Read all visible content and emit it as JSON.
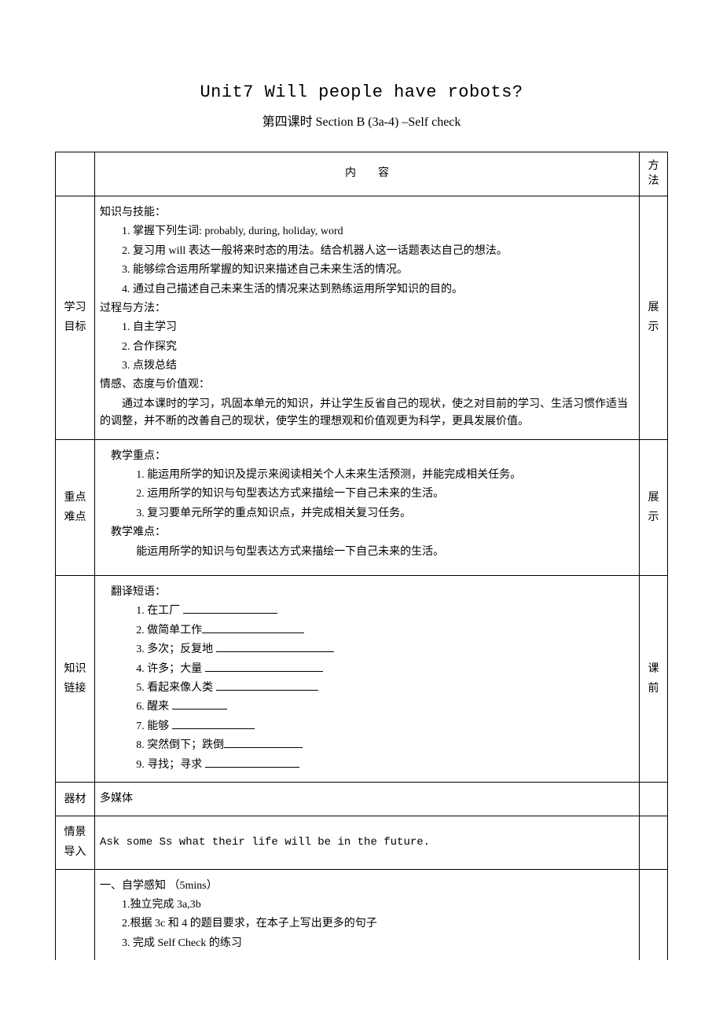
{
  "titles": {
    "unit": "Unit7 Will people have robots?",
    "period": "第四课时 Section B (3a-4)  –Self check"
  },
  "header": {
    "content": "内容",
    "method": "方法"
  },
  "rows": {
    "goal": {
      "label1": "学习",
      "label2": "目标",
      "r_method": "展示",
      "k_skill": "知识与技能：",
      "k_items": {
        "i1": "1. 掌握下列生词: probably, during, holiday, word",
        "i2": "2. 复习用 will 表达一般将来时态的用法。结合机器人这一话题表达自己的想法。",
        "i3": "3. 能够综合运用所掌握的知识来描述自己未来生活的情况。",
        "i4": "4. 通过自己描述自己未来生活的情况来达到熟练运用所学知识的目的。"
      },
      "proc": "过程与方法：",
      "p_items": {
        "i1": "1.  自主学习",
        "i2": "2.  合作探究",
        "i3": "3.  点拨总结"
      },
      "attitude": "情感、态度与价值观：",
      "attitude_text1": "通过本课时的学习，巩固本单元的知识，并让学生反省自己的现状，使之对目前的学习、生活习惯作适当的调整，并不断的改善自己的现状，使学生的理想观和价值观更为科学，更具发展价值。"
    },
    "focus": {
      "label1": "重点",
      "label2": "难点",
      "r_method": "展示",
      "teach_focus": "教学重点：",
      "f_items": {
        "i1": "1.   能运用所学的知识及提示来阅读相关个人未来生活预测，并能完成相关任务。",
        "i2": "2. 运用所学的知识与句型表达方式来描绘一下自己未来的生活。",
        "i3": "3. 复习要单元所学的重点知识点，并完成相关复习任务。"
      },
      "teach_diff": "教学难点：",
      "diff_text": "能运用所学的知识与句型表达方式来描绘一下自己未来的生活。"
    },
    "link": {
      "label1": "知识",
      "label2": "链接",
      "r_method1": "课",
      "r_method2": "前",
      "translate": "翻译短语：",
      "items": {
        "i1": "1. 在工厂 ",
        "i2": "2. 做简单工作",
        "i3": "3. 多次；反复地 ",
        "i4": "4. 许多；大量 ",
        "i5": "5. 看起来像人类  ",
        "i6": "6. 醒来 ",
        "i7": "7. 能够 ",
        "i8": "8. 突然倒下；跌倒",
        "i9": "9. 寻找；寻求  "
      },
      "blank_widths": {
        "b1": "120px",
        "b2": "130px",
        "b3": "150px",
        "b4": "150px",
        "b5": "130px",
        "b6": "70px",
        "b7": "105px",
        "b8": "100px",
        "b9": "120px"
      }
    },
    "equip": {
      "label": "器材",
      "text": "多媒体"
    },
    "scene": {
      "label1": "情景",
      "label2": "导入",
      "text": "Ask some Ss what their life will be in the future."
    },
    "self": {
      "heading": "一、自学感知 （5mins）",
      "i1": "1.独立完成 3a,3b",
      "i2": "2.根据 3c 和 4 的题目要求，在本子上写出更多的句子",
      "i3": "3. 完成 Self Check 的练习"
    }
  }
}
